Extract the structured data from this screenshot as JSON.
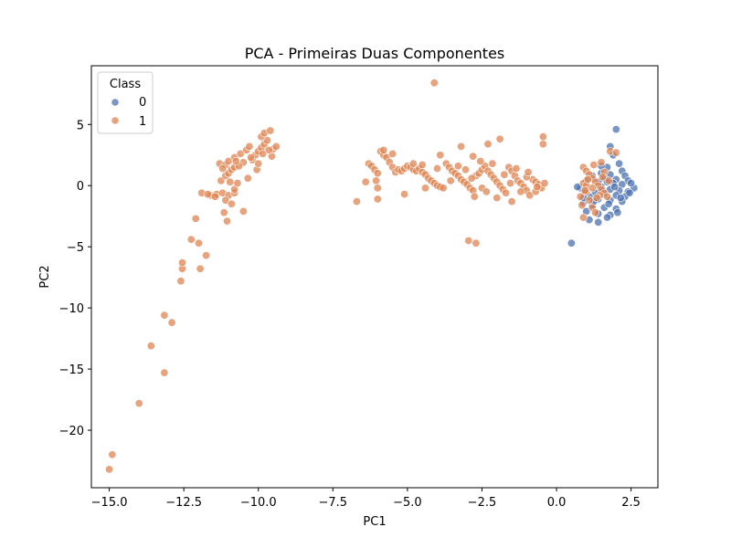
{
  "chart_data": {
    "type": "scatter",
    "title": "PCA - Primeiras Duas Componentes",
    "xlabel": "PC1",
    "ylabel": "PC2",
    "xlim": [
      -15.6,
      3.4
    ],
    "ylim": [
      -24.7,
      9.8
    ],
    "xticks": [
      -15.0,
      -12.5,
      -10.0,
      -7.5,
      -5.0,
      -2.5,
      0.0,
      2.5
    ],
    "xtick_labels": [
      "−15.0",
      "−12.5",
      "−10.0",
      "−7.5",
      "−5.0",
      "−2.5",
      "0.0",
      "2.5"
    ],
    "yticks": [
      5,
      0,
      -5,
      -10,
      -15,
      -20
    ],
    "ytick_labels": [
      "5",
      "0",
      "−5",
      "−10",
      "−15",
      "−20"
    ],
    "grid": false,
    "legend": {
      "title": "Class",
      "placement": "top-left"
    },
    "colors": {
      "0": "#4c72b0",
      "1": "#dd8452"
    },
    "series": [
      {
        "name": "0",
        "points": [
          [
            2.0,
            4.6
          ],
          [
            1.8,
            3.2
          ],
          [
            1.9,
            2.5
          ],
          [
            2.1,
            1.8
          ],
          [
            1.7,
            1.5
          ],
          [
            2.2,
            1.2
          ],
          [
            1.5,
            1.0
          ],
          [
            1.8,
            0.9
          ],
          [
            2.3,
            0.8
          ],
          [
            1.6,
            0.6
          ],
          [
            2.0,
            0.5
          ],
          [
            2.4,
            0.4
          ],
          [
            1.4,
            0.3
          ],
          [
            1.9,
            0.2
          ],
          [
            2.2,
            0.1
          ],
          [
            2.6,
            -0.2
          ],
          [
            1.5,
            -0.1
          ],
          [
            1.8,
            -0.3
          ],
          [
            2.1,
            -0.4
          ],
          [
            2.4,
            -0.5
          ],
          [
            1.3,
            -0.6
          ],
          [
            1.6,
            -0.7
          ],
          [
            2.0,
            -0.8
          ],
          [
            2.3,
            -0.9
          ],
          [
            1.1,
            -0.9
          ],
          [
            1.4,
            -1.1
          ],
          [
            1.8,
            -1.2
          ],
          [
            2.2,
            -1.3
          ],
          [
            0.9,
            -1.4
          ],
          [
            1.2,
            -1.6
          ],
          [
            1.6,
            -1.8
          ],
          [
            2.0,
            -1.9
          ],
          [
            1.0,
            -2.1
          ],
          [
            1.4,
            -2.3
          ],
          [
            1.8,
            -2.4
          ],
          [
            1.1,
            -2.8
          ],
          [
            1.4,
            -3.0
          ],
          [
            1.7,
            -2.6
          ],
          [
            0.8,
            -0.2
          ],
          [
            1.0,
            0.4
          ],
          [
            1.2,
            0.8
          ],
          [
            1.5,
            1.6
          ],
          [
            2.5,
            0.2
          ],
          [
            2.45,
            -0.6
          ],
          [
            2.15,
            -1.0
          ],
          [
            1.75,
            -1.5
          ],
          [
            1.95,
            -0.1
          ],
          [
            0.95,
            -0.5
          ],
          [
            1.25,
            -1.3
          ],
          [
            1.55,
            -0.4
          ],
          [
            0.5,
            -4.7
          ],
          [
            0.7,
            -0.1
          ],
          [
            0.9,
            -1.0
          ],
          [
            1.7,
            0.3
          ],
          [
            2.05,
            -2.2
          ]
        ]
      },
      {
        "name": "1",
        "points": [
          [
            -14.9,
            -22.0
          ],
          [
            -15.0,
            -23.2
          ],
          [
            -14.0,
            -17.8
          ],
          [
            -13.6,
            -13.1
          ],
          [
            -13.15,
            -15.3
          ],
          [
            -13.15,
            -10.6
          ],
          [
            -12.9,
            -11.2
          ],
          [
            -12.6,
            -7.8
          ],
          [
            -12.55,
            -6.8
          ],
          [
            -12.55,
            -6.3
          ],
          [
            -12.25,
            -4.4
          ],
          [
            -12.0,
            -4.7
          ],
          [
            -12.1,
            -2.7
          ],
          [
            -11.95,
            -6.8
          ],
          [
            -11.75,
            -5.7
          ],
          [
            -11.9,
            -0.6
          ],
          [
            -11.6,
            -0.8
          ],
          [
            -11.4,
            -0.7
          ],
          [
            -11.2,
            -0.6
          ],
          [
            -11.0,
            -0.8
          ],
          [
            -10.8,
            -0.6
          ],
          [
            -11.1,
            -1.2
          ],
          [
            -10.9,
            -1.5
          ],
          [
            -11.15,
            -2.2
          ],
          [
            -11.05,
            -2.9
          ],
          [
            -10.5,
            -2.1
          ],
          [
            -10.8,
            -0.3
          ],
          [
            -10.7,
            0.2
          ],
          [
            -11.25,
            0.4
          ],
          [
            -11.1,
            0.8
          ],
          [
            -11.0,
            1.0
          ],
          [
            -10.9,
            1.3
          ],
          [
            -10.8,
            1.5
          ],
          [
            -11.3,
            1.8
          ],
          [
            -11.1,
            1.7
          ],
          [
            -11.0,
            2.0
          ],
          [
            -10.8,
            2.3
          ],
          [
            -10.6,
            2.6
          ],
          [
            -10.4,
            2.9
          ],
          [
            -10.3,
            3.2
          ],
          [
            -10.2,
            2.1
          ],
          [
            -10.1,
            2.5
          ],
          [
            -10.0,
            2.8
          ],
          [
            -9.9,
            3.1
          ],
          [
            -9.8,
            3.4
          ],
          [
            -9.7,
            3.7
          ],
          [
            -9.9,
            4.0
          ],
          [
            -9.8,
            4.3
          ],
          [
            -9.6,
            4.5
          ],
          [
            -9.5,
            3.0
          ],
          [
            -9.4,
            3.2
          ],
          [
            -10.5,
            1.9
          ],
          [
            -10.65,
            1.6
          ],
          [
            -10.05,
            1.3
          ],
          [
            -10.35,
            0.6
          ],
          [
            -11.45,
            -0.9
          ],
          [
            -11.7,
            -0.7
          ],
          [
            -10.0,
            1.8
          ],
          [
            -9.55,
            2.4
          ],
          [
            -9.65,
            2.9
          ],
          [
            -10.75,
            2.0
          ],
          [
            -11.2,
            1.4
          ],
          [
            -10.95,
            0.3
          ],
          [
            -10.25,
            2.3
          ],
          [
            -9.85,
            2.6
          ],
          [
            -4.1,
            8.4
          ],
          [
            -6.7,
            -1.3
          ],
          [
            -6.4,
            0.3
          ],
          [
            -6.3,
            1.8
          ],
          [
            -6.2,
            1.6
          ],
          [
            -6.1,
            1.3
          ],
          [
            -6.0,
            1.0
          ],
          [
            -6.05,
            0.4
          ],
          [
            -6.0,
            -0.2
          ],
          [
            -5.9,
            2.8
          ],
          [
            -5.8,
            2.5
          ],
          [
            -5.7,
            2.3
          ],
          [
            -5.6,
            1.9
          ],
          [
            -5.5,
            1.5
          ],
          [
            -5.4,
            1.1
          ],
          [
            -5.3,
            1.3
          ],
          [
            -5.2,
            1.2
          ],
          [
            -5.1,
            1.4
          ],
          [
            -5.0,
            1.6
          ],
          [
            -4.9,
            1.5
          ],
          [
            -4.8,
            1.3
          ],
          [
            -4.7,
            1.2
          ],
          [
            -4.6,
            1.4
          ],
          [
            -4.5,
            1.1
          ],
          [
            -4.4,
            0.9
          ],
          [
            -4.3,
            0.6
          ],
          [
            -4.2,
            0.4
          ],
          [
            -4.1,
            0.2
          ],
          [
            -4.0,
            0.0
          ],
          [
            -3.9,
            -0.1
          ],
          [
            -3.8,
            -0.2
          ],
          [
            -3.7,
            1.8
          ],
          [
            -3.6,
            1.5
          ],
          [
            -3.5,
            1.2
          ],
          [
            -3.4,
            1.0
          ],
          [
            -3.3,
            0.8
          ],
          [
            -3.2,
            0.5
          ],
          [
            -3.1,
            0.3
          ],
          [
            -3.0,
            0.1
          ],
          [
            -2.9,
            -0.2
          ],
          [
            -2.8,
            -0.4
          ],
          [
            -2.7,
            0.8
          ],
          [
            -2.6,
            1.0
          ],
          [
            -2.5,
            1.3
          ],
          [
            -2.4,
            1.6
          ],
          [
            -2.3,
            1.2
          ],
          [
            -2.2,
            0.9
          ],
          [
            -2.1,
            0.6
          ],
          [
            -2.0,
            0.3
          ],
          [
            -1.9,
            0.0
          ],
          [
            -1.8,
            -0.3
          ],
          [
            -1.7,
            -0.6
          ],
          [
            -1.6,
            1.5
          ],
          [
            -1.5,
            1.2
          ],
          [
            -1.4,
            0.8
          ],
          [
            -1.3,
            0.4
          ],
          [
            -1.2,
            0.2
          ],
          [
            -1.1,
            -0.1
          ],
          [
            -1.0,
            -0.4
          ],
          [
            -0.9,
            -0.8
          ],
          [
            -0.8,
            0.5
          ],
          [
            -0.7,
            0.3
          ],
          [
            -0.6,
            0.1
          ],
          [
            -0.5,
            -0.2
          ],
          [
            -0.4,
            0.2
          ],
          [
            -0.45,
            3.4
          ],
          [
            -0.45,
            4.0
          ],
          [
            -1.9,
            3.8
          ],
          [
            -2.3,
            3.4
          ],
          [
            -2.8,
            2.4
          ],
          [
            -3.2,
            3.2
          ],
          [
            -4.8,
            1.8
          ],
          [
            -5.5,
            2.6
          ],
          [
            -5.8,
            2.9
          ],
          [
            -6.0,
            -1.1
          ],
          [
            -5.1,
            -0.7
          ],
          [
            -4.4,
            -0.2
          ],
          [
            -3.9,
            2.5
          ],
          [
            -2.95,
            -4.5
          ],
          [
            -2.7,
            -4.7
          ],
          [
            -2.5,
            -0.2
          ],
          [
            -2.0,
            -1.0
          ],
          [
            -1.5,
            -1.3
          ],
          [
            -1.2,
            -0.5
          ],
          [
            -0.7,
            -0.5
          ],
          [
            -1.0,
            0.7
          ],
          [
            -2.15,
            1.8
          ],
          [
            -2.55,
            2.0
          ],
          [
            -3.3,
            1.6
          ],
          [
            -4.0,
            1.4
          ],
          [
            -4.5,
            1.7
          ],
          [
            -2.85,
            0.6
          ],
          [
            -3.55,
            0.4
          ],
          [
            -1.75,
            0.9
          ],
          [
            -1.35,
            1.4
          ],
          [
            -2.35,
            -0.5
          ],
          [
            -3.05,
            1.3
          ],
          [
            -1.55,
            0.2
          ],
          [
            -0.95,
            1.1
          ],
          [
            -0.65,
            -0.1
          ],
          [
            -2.75,
            -0.9
          ],
          [
            0.8,
            -0.9
          ],
          [
            0.9,
            1.5
          ],
          [
            1.0,
            1.2
          ],
          [
            1.1,
            0.9
          ],
          [
            1.2,
            0.6
          ],
          [
            1.3,
            0.3
          ],
          [
            1.4,
            0.0
          ],
          [
            1.5,
            -0.3
          ],
          [
            1.6,
            -0.6
          ],
          [
            1.7,
            -0.9
          ],
          [
            0.9,
            0.2
          ],
          [
            1.0,
            -0.5
          ],
          [
            1.1,
            -1.2
          ],
          [
            1.2,
            -1.8
          ],
          [
            1.3,
            -2.2
          ],
          [
            0.9,
            -2.6
          ],
          [
            1.5,
            1.9
          ],
          [
            1.8,
            2.8
          ],
          [
            2.0,
            2.7
          ],
          [
            1.6,
            1.1
          ],
          [
            1.0,
            0.0
          ],
          [
            1.2,
            -0.2
          ],
          [
            0.85,
            -1.6
          ],
          [
            1.45,
            -0.8
          ],
          [
            1.75,
            0.4
          ],
          [
            1.25,
            1.7
          ],
          [
            1.05,
            0.5
          ],
          [
            1.35,
            -1.0
          ],
          [
            0.95,
            -0.4
          ],
          [
            1.55,
            0.7
          ]
        ]
      }
    ]
  }
}
